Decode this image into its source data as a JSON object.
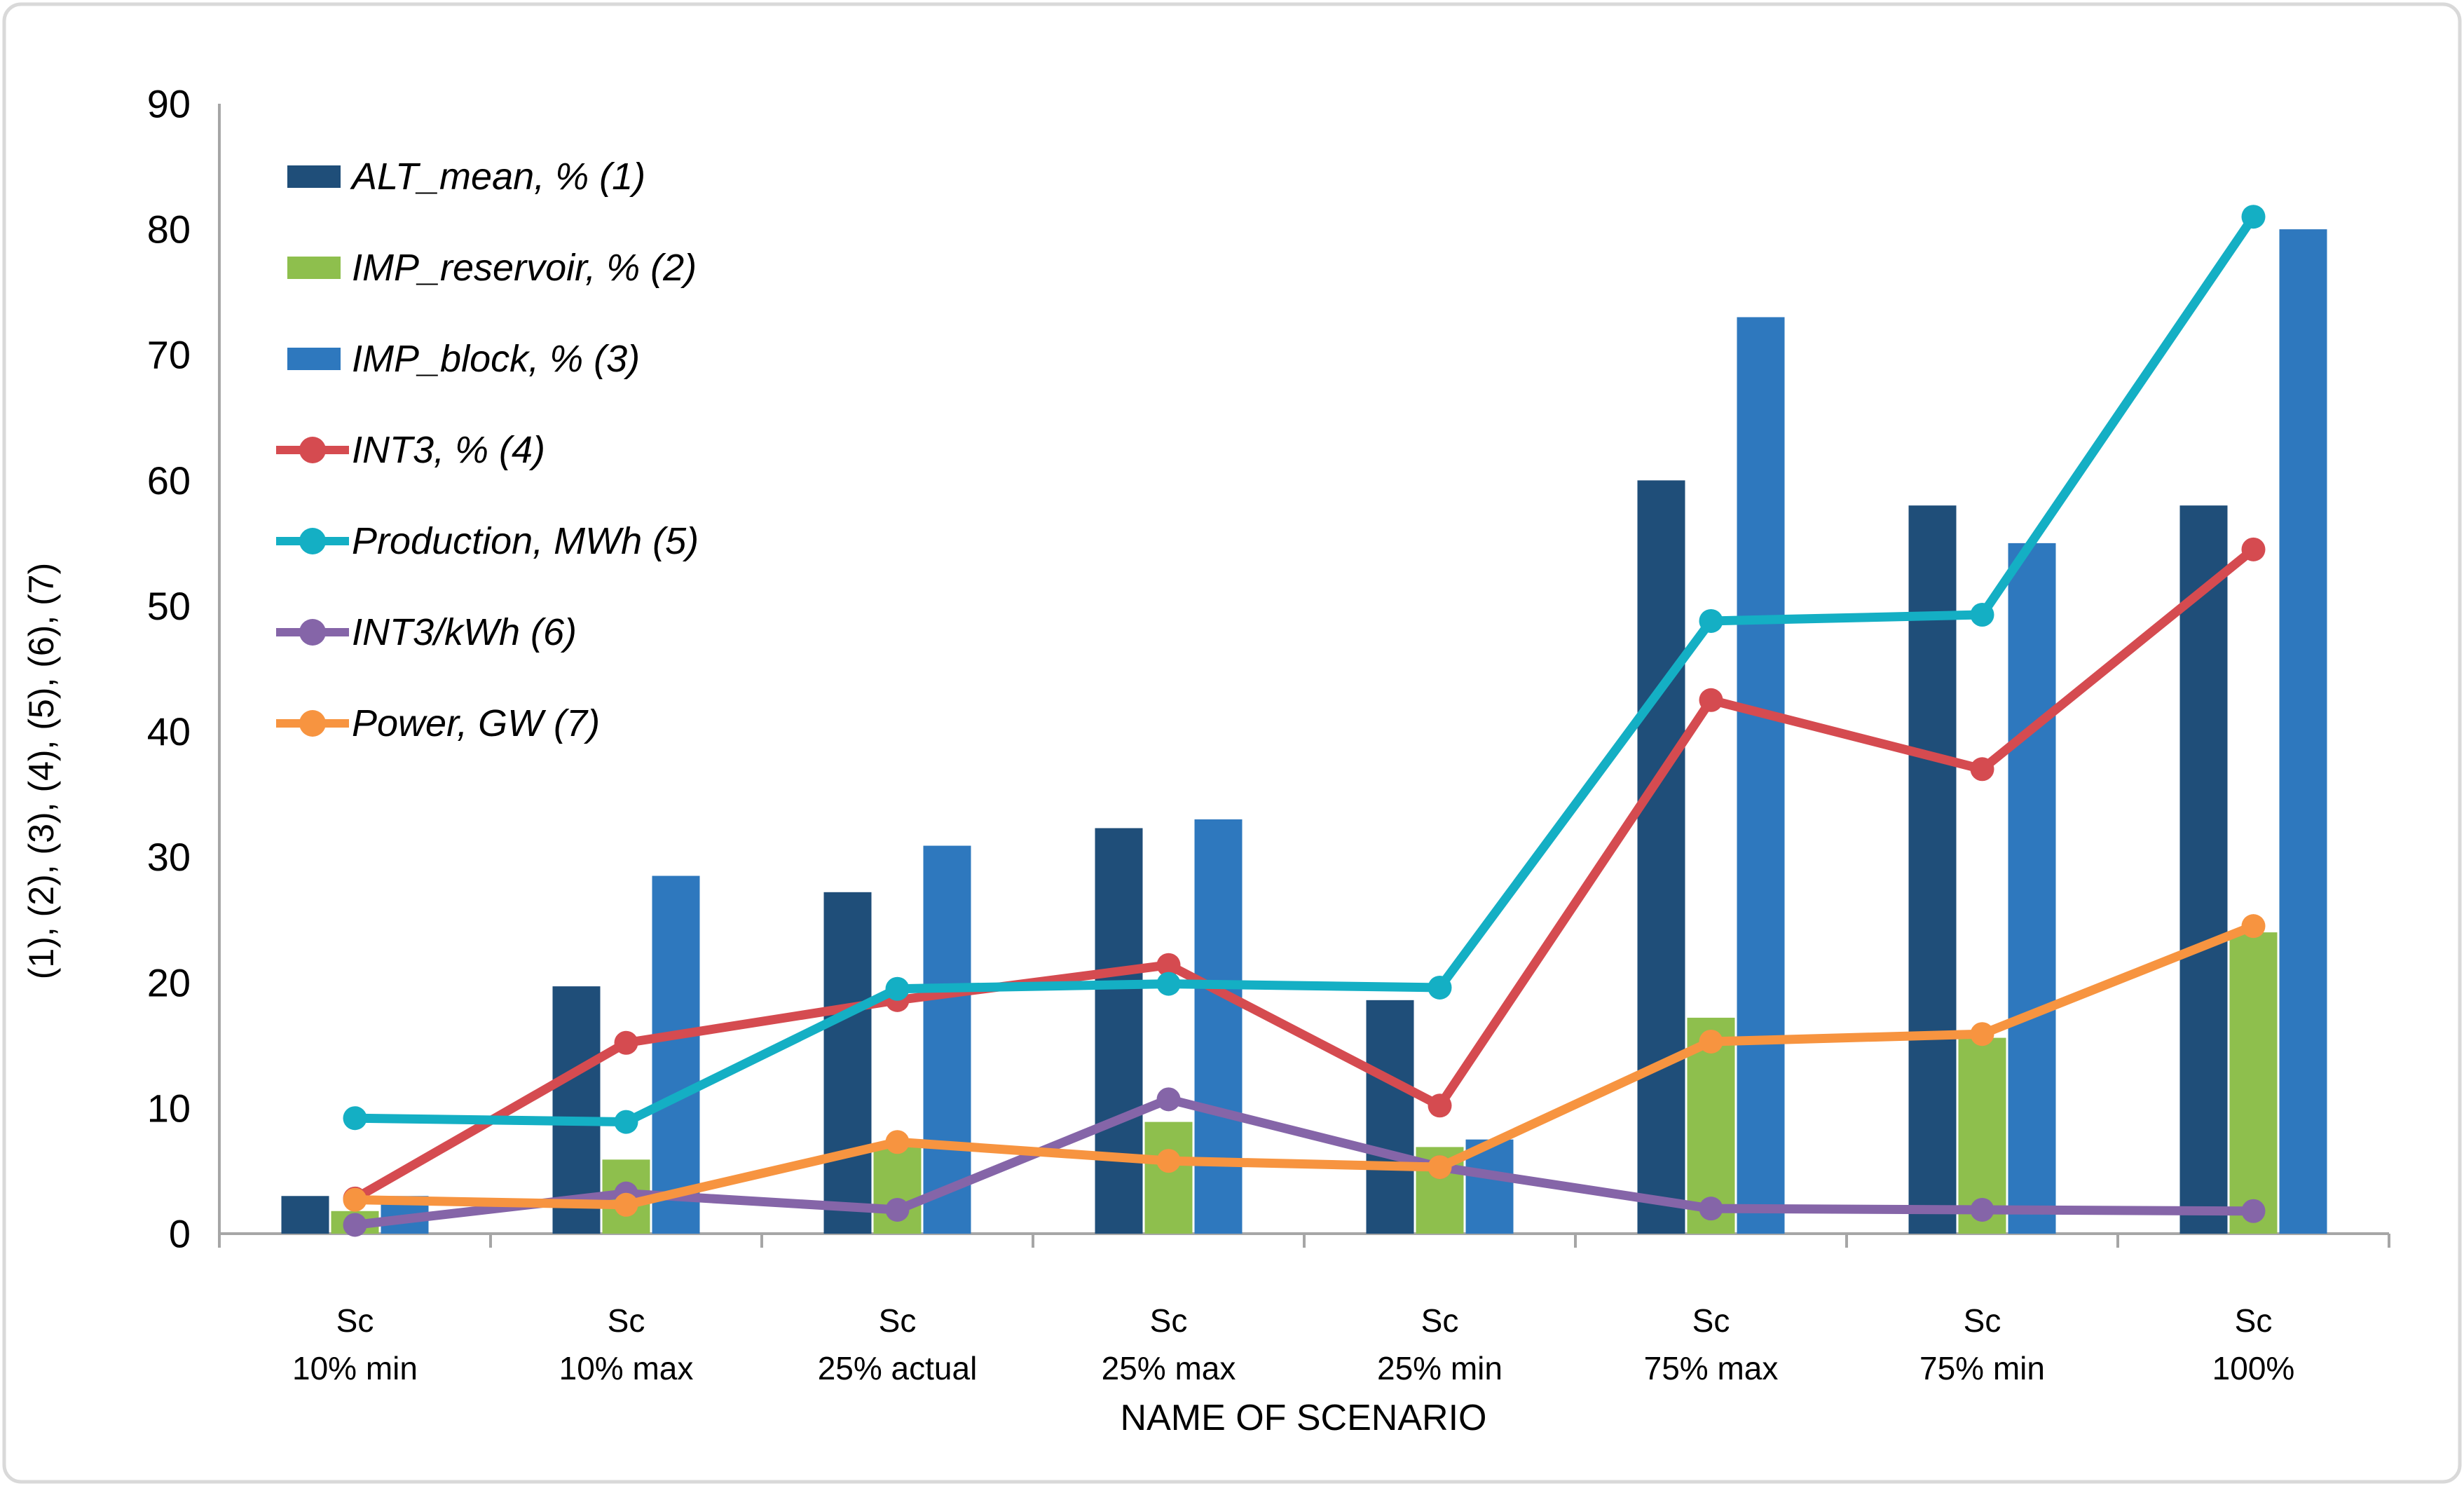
{
  "figure": {
    "background": "#ffffff",
    "border_color": "#d9d9d9"
  },
  "chart_data": {
    "type": "bar+line-combo",
    "title": "",
    "xlabel": "NAME OF SCENARIO",
    "ylabel": "(1), (2), (3), (4), (5), (6), (7)",
    "ylim": [
      0,
      90
    ],
    "ytick_step": 10,
    "grid": false,
    "legend_position": "top-left-inside",
    "axis_color": "#a6a6a6",
    "text_color": "#000000",
    "categories": [
      [
        "Sc",
        "10% min"
      ],
      [
        "Sc",
        "10% max"
      ],
      [
        "Sc",
        "25% actual"
      ],
      [
        "Sc",
        "25% max"
      ],
      [
        "Sc",
        "25% min"
      ],
      [
        "Sc",
        "75% max"
      ],
      [
        "Sc",
        "75% min"
      ],
      [
        "Sc",
        "100%"
      ]
    ],
    "series": [
      {
        "name": "ALT_mean, % (1)",
        "type": "bar",
        "color": "#1F4E79",
        "values": [
          3.0,
          19.7,
          27.2,
          32.3,
          18.6,
          60.0,
          58.0,
          58.0
        ]
      },
      {
        "name": "IMP_reservoir, % (2)",
        "type": "bar",
        "color": "#8EBF4D",
        "values": [
          1.8,
          5.9,
          7.0,
          8.9,
          6.9,
          17.2,
          15.6,
          24.0
        ]
      },
      {
        "name": "IMP_block, % (3)",
        "type": "bar",
        "color": "#2E78BE",
        "values": [
          3.0,
          28.5,
          30.9,
          33.0,
          7.5,
          73.0,
          55.0,
          80.0
        ]
      },
      {
        "name": "INT3, % (4)",
        "type": "line",
        "color": "#D54B50",
        "values": [
          2.8,
          15.2,
          18.6,
          21.4,
          10.2,
          42.5,
          37.0,
          54.5
        ]
      },
      {
        "name": "Production, MWh (5)",
        "type": "line",
        "color": "#14AFC4",
        "values": [
          9.2,
          8.9,
          19.5,
          19.9,
          19.6,
          48.8,
          49.3,
          81.0
        ]
      },
      {
        "name": "INT3/kWh (6)",
        "type": "line",
        "color": "#8565A8",
        "values": [
          0.7,
          3.2,
          1.9,
          10.7,
          5.3,
          2.0,
          1.9,
          1.8
        ]
      },
      {
        "name": "Power, GW (7)",
        "type": "line",
        "color": "#F79440",
        "values": [
          2.7,
          2.3,
          7.3,
          5.8,
          5.3,
          15.3,
          15.9,
          24.5
        ]
      }
    ]
  }
}
